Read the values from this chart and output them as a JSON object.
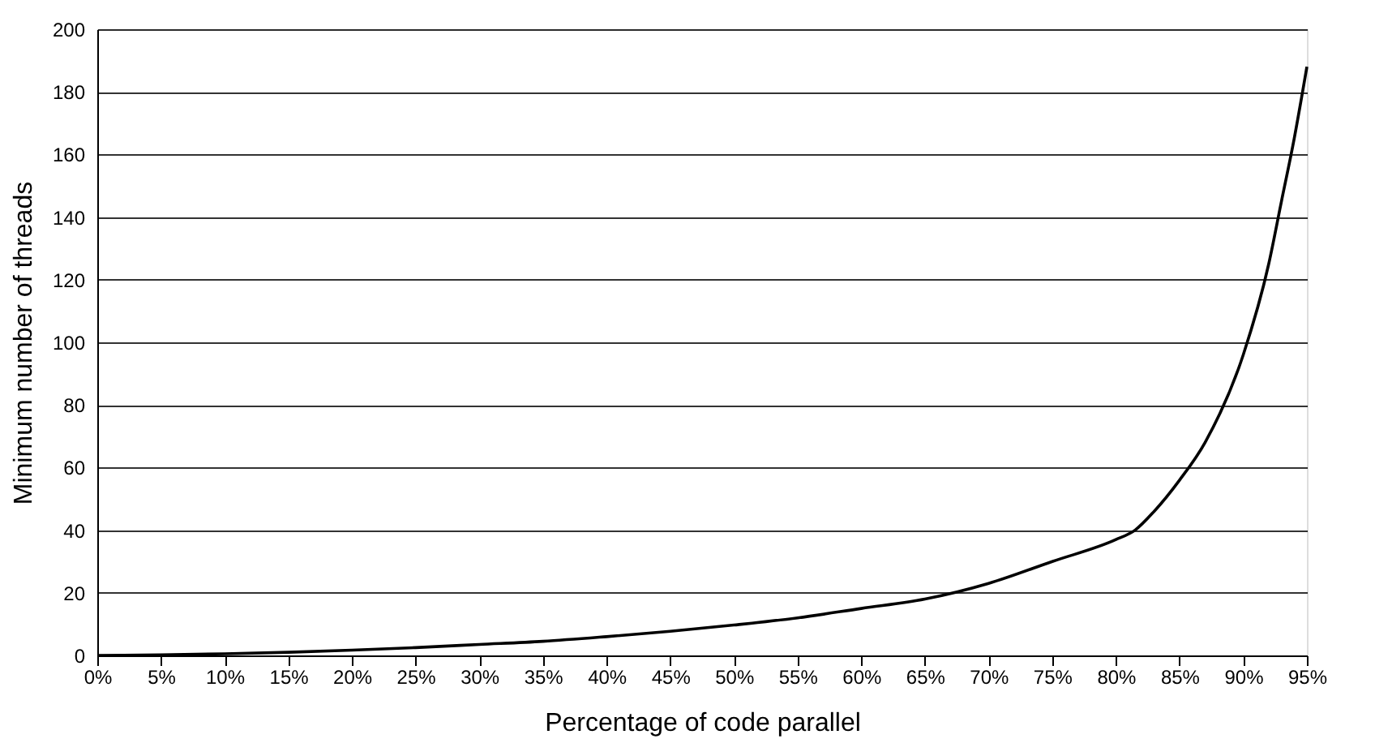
{
  "chart_data": {
    "type": "line",
    "xlabel": "Percentage of code parallel",
    "ylabel": "Minimum number of threads",
    "x": [
      0,
      5,
      10,
      15,
      20,
      25,
      30,
      35,
      40,
      45,
      50,
      55,
      60,
      65,
      70,
      75,
      80,
      81.5,
      83,
      85,
      87,
      90,
      92,
      93,
      94,
      95
    ],
    "series": [
      {
        "color": "#000000",
        "values": [
          0,
          0.2,
          0.5,
          1,
          1.7,
          2.5,
          3.5,
          4.5,
          6,
          7.7,
          9.7,
          12,
          15,
          18,
          23,
          30,
          37,
          40,
          46,
          56,
          68,
          96,
          125,
          145,
          165,
          188
        ]
      }
    ],
    "xlim": [
      0,
      95
    ],
    "xticks": [
      {
        "value": 0,
        "label": "0%"
      },
      {
        "value": 5,
        "label": "5%"
      },
      {
        "value": 10,
        "label": "10%"
      },
      {
        "value": 15,
        "label": "15%"
      },
      {
        "value": 20,
        "label": "20%"
      },
      {
        "value": 25,
        "label": "25%"
      },
      {
        "value": 30,
        "label": "30%"
      },
      {
        "value": 35,
        "label": "35%"
      },
      {
        "value": 40,
        "label": "40%"
      },
      {
        "value": 45,
        "label": "45%"
      },
      {
        "value": 50,
        "label": "50%"
      },
      {
        "value": 55,
        "label": "55%"
      },
      {
        "value": 60,
        "label": "60%"
      },
      {
        "value": 65,
        "label": "65%"
      },
      {
        "value": 70,
        "label": "70%"
      },
      {
        "value": 75,
        "label": "75%"
      },
      {
        "value": 80,
        "label": "80%"
      },
      {
        "value": 85,
        "label": "85%"
      },
      {
        "value": 90,
        "label": "90%"
      },
      {
        "value": 95,
        "label": "95%"
      }
    ],
    "ylim": [
      0,
      200
    ],
    "yticks": [
      0,
      20,
      40,
      60,
      80,
      100,
      120,
      140,
      160,
      180,
      200
    ],
    "grid": "y",
    "marker": "none",
    "line_style": "solid"
  }
}
